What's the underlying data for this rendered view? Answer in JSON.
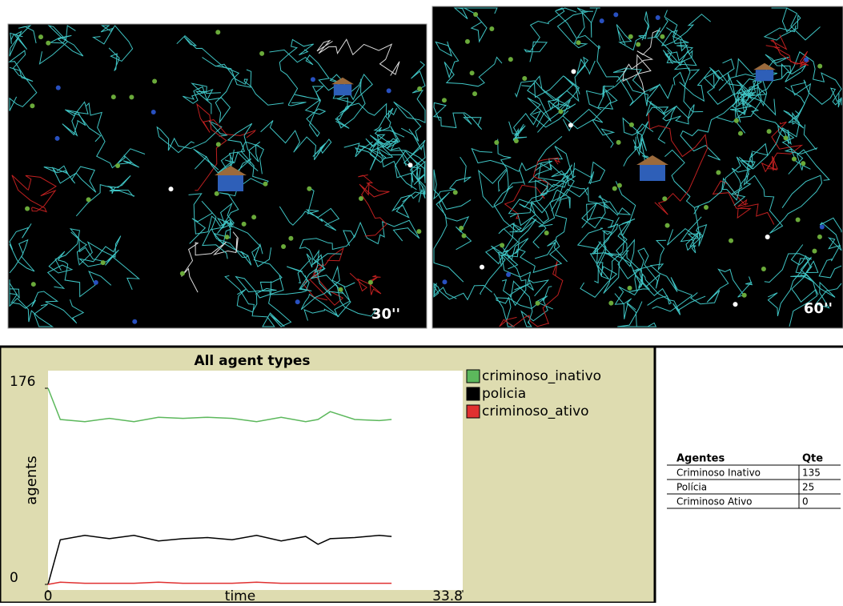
{
  "snapshots": [
    {
      "label": "30''"
    },
    {
      "label": "60''"
    }
  ],
  "chart_data": {
    "type": "line",
    "title": "All agent types",
    "x_label": "time",
    "y_label": "agents",
    "x": [
      0,
      1,
      3,
      5,
      7,
      9,
      11,
      13,
      15,
      17,
      19,
      21,
      22,
      23,
      25,
      27,
      28
    ],
    "series": [
      {
        "name": "criminoso_inativo",
        "color": "#5cb85c",
        "values": [
          176,
          148,
          146,
          149,
          146,
          150,
          149,
          150,
          149,
          146,
          150,
          146,
          148,
          155,
          148,
          147,
          148
        ]
      },
      {
        "name": "policia",
        "color": "#000000",
        "values": [
          0,
          40,
          44,
          41,
          44,
          39,
          41,
          42,
          40,
          44,
          39,
          43,
          36,
          41,
          42,
          44,
          43
        ]
      },
      {
        "name": "criminoso_ativo",
        "color": "#e03030",
        "values": [
          0,
          2,
          1,
          1,
          1,
          2,
          1,
          1,
          1,
          2,
          1,
          1,
          1,
          1,
          1,
          1,
          1
        ]
      }
    ],
    "xlim": [
      0,
      33.8
    ],
    "ylim": [
      0,
      176
    ],
    "xticks": [
      0,
      33.8
    ],
    "yticks": [
      0,
      176
    ]
  },
  "table": {
    "header": [
      "Agentes",
      "Qte"
    ],
    "rows": [
      [
        "Criminoso Inativo",
        "135"
      ],
      [
        "Polícia",
        "25"
      ],
      [
        "Criminoso Ativo",
        "0"
      ]
    ]
  }
}
